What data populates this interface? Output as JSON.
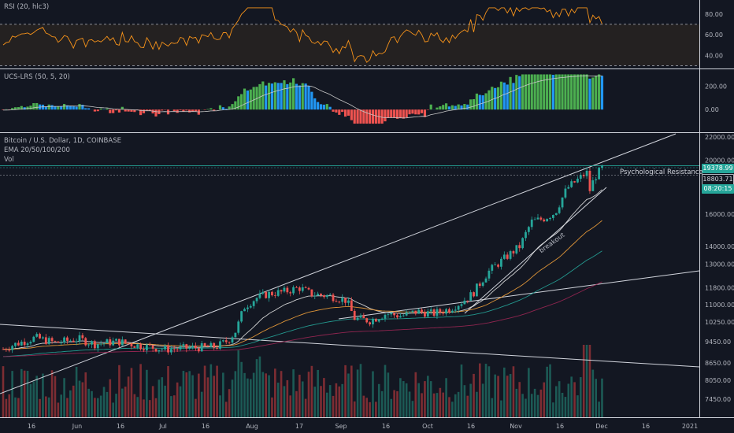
{
  "panes": {
    "rsi": {
      "title": "RSI (20, hlc3)",
      "ticks": [
        "80.00",
        "60.00",
        "40.00"
      ],
      "tick_values": [
        80,
        60,
        40
      ],
      "ylim": [
        28,
        92
      ],
      "bands": [
        70,
        30
      ]
    },
    "lrs": {
      "title": "UCS-LRS (50, 5, 20)",
      "ticks": [
        "200.00",
        "0.00"
      ],
      "tick_values": [
        200,
        0
      ],
      "ylim": [
        -180,
        330
      ]
    },
    "price": {
      "title": "Bitcoin / U.S. Dollar, 1D, COINBASE",
      "indicator_1": "EMA 20/50/100/200",
      "indicator_2": "Vol",
      "ticks": [
        "22000.00",
        "20000.00",
        "16000.00",
        "14000.00",
        "13000.00",
        "11800.00",
        "11000.00",
        "10250.00",
        "9450.00",
        "8650.00",
        "8050.00",
        "7450.00"
      ],
      "tick_values": [
        22000,
        20000,
        16000,
        14000,
        13000,
        11800,
        11000,
        10250,
        9450,
        8650,
        8050,
        7450
      ],
      "scale": "log"
    }
  },
  "x_axis_labels": [
    "16",
    "Jun",
    "16",
    "Jul",
    "16",
    "Aug",
    "17",
    "Sep",
    "16",
    "Oct",
    "16",
    "Nov",
    "16",
    "Dec",
    "16",
    "2021"
  ],
  "x_axis_positions": [
    40,
    98,
    153,
    207,
    261,
    320,
    380,
    433,
    490,
    543,
    598,
    655,
    711,
    764,
    820,
    876
  ],
  "badges": {
    "last_price": "19378.99",
    "prev_price": "18803.71",
    "countdown": "08:20:15"
  },
  "annotations": {
    "resistance_label": "Psychological Resistance",
    "breakout_label": "breakout",
    "resistance_level": 19500
  },
  "colors": {
    "bg": "#131722",
    "up": "#26a69a",
    "down": "#ef5350",
    "rsi": "#f7931a",
    "ema20": "#e4e4e4",
    "ema50": "#f4a23b",
    "ema100": "#26a69a",
    "ema200": "#9c2754",
    "lrs_green": "#4caf50",
    "lrs_blue": "#2196f3",
    "lrs_red": "#ef5350"
  },
  "chart_data": {
    "type": "candlestick",
    "title": "Bitcoin / U.S. Dollar, 1D, COINBASE",
    "keypoints": [
      [
        0,
        9100
      ],
      [
        15,
        9300
      ],
      [
        30,
        9450
      ],
      [
        45,
        9600
      ],
      [
        70,
        9400
      ],
      [
        100,
        9550
      ],
      [
        120,
        9350
      ],
      [
        150,
        9450
      ],
      [
        175,
        9300
      ],
      [
        210,
        9150
      ],
      [
        240,
        9200
      ],
      [
        275,
        9250
      ],
      [
        290,
        9500
      ],
      [
        300,
        9900
      ],
      [
        310,
        10900
      ],
      [
        325,
        11300
      ],
      [
        340,
        11500
      ],
      [
        360,
        11600
      ],
      [
        380,
        11800
      ],
      [
        395,
        11500
      ],
      [
        420,
        11400
      ],
      [
        440,
        11200
      ],
      [
        450,
        10400
      ],
      [
        470,
        10300
      ],
      [
        490,
        10600
      ],
      [
        510,
        10500
      ],
      [
        530,
        10700
      ],
      [
        550,
        10600
      ],
      [
        570,
        10800
      ],
      [
        585,
        11100
      ],
      [
        600,
        11500
      ],
      [
        620,
        12600
      ],
      [
        640,
        13300
      ],
      [
        660,
        14000
      ],
      [
        675,
        15500
      ],
      [
        690,
        15700
      ],
      [
        705,
        16100
      ],
      [
        720,
        17800
      ],
      [
        735,
        18500
      ],
      [
        745,
        19000
      ],
      [
        748,
        17500
      ],
      [
        755,
        18600
      ],
      [
        765,
        19400
      ]
    ],
    "ema_lengths": [
      20,
      50,
      100,
      200
    ],
    "volume_ylim": [
      0,
      100
    ]
  }
}
